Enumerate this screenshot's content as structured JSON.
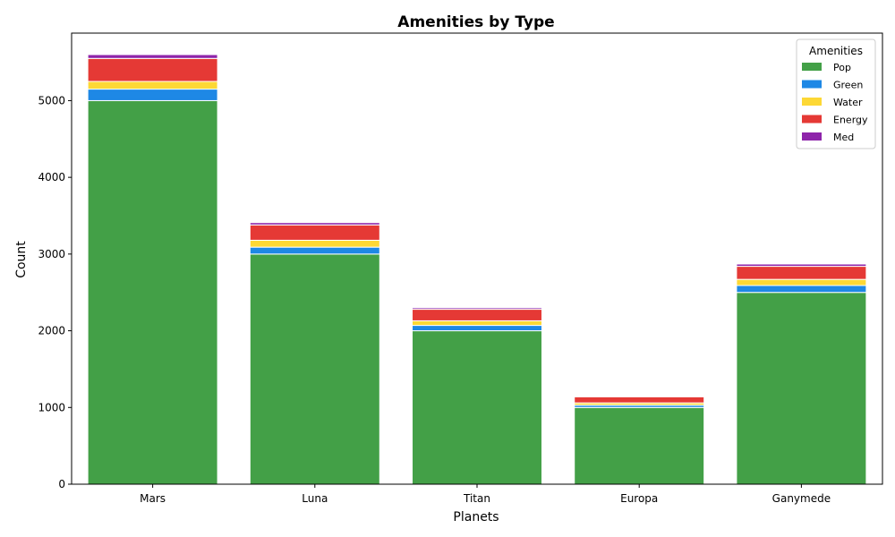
{
  "chart_data": {
    "type": "bar",
    "stacked": true,
    "title": "Amenities by Type",
    "xlabel": "Planets",
    "ylabel": "Count",
    "categories": [
      "Mars",
      "Luna",
      "Titan",
      "Europa",
      "Ganymede"
    ],
    "series": [
      {
        "name": "Pop",
        "color": "#43a047",
        "values": [
          5000,
          3000,
          2000,
          1000,
          2500
        ]
      },
      {
        "name": "Green",
        "color": "#1e88e5",
        "values": [
          150,
          90,
          70,
          30,
          90
        ]
      },
      {
        "name": "Water",
        "color": "#fdd835",
        "values": [
          100,
          90,
          60,
          30,
          80
        ]
      },
      {
        "name": "Energy",
        "color": "#e53935",
        "values": [
          300,
          200,
          150,
          80,
          170
        ]
      },
      {
        "name": "Med",
        "color": "#8e24aa",
        "values": [
          50,
          30,
          20,
          10,
          30
        ]
      }
    ],
    "ylim": [
      0,
      5880
    ],
    "yticks": [
      "0",
      "1000",
      "2000",
      "3000",
      "4000",
      "5000"
    ],
    "legend": {
      "title": "Amenities",
      "placement": "top-right"
    },
    "grid": false
  }
}
